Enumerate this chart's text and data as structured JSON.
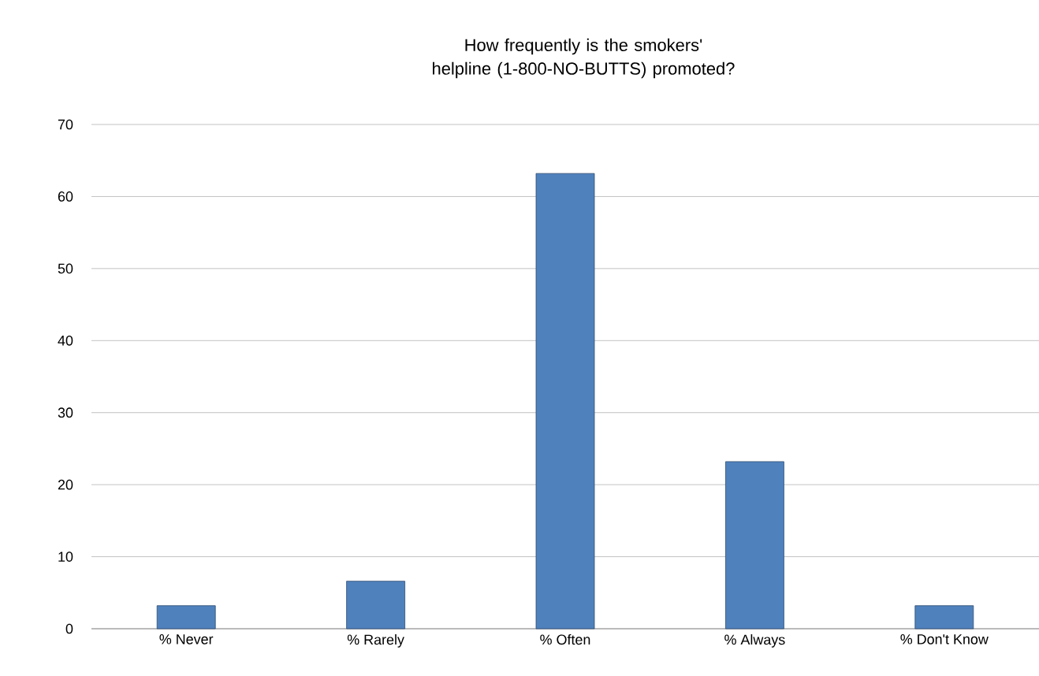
{
  "chart_data": {
    "type": "bar",
    "title": "How frequently is the smokers' helpline (1-800-NO-BUTTS) promoted?",
    "categories": [
      "% Never",
      "% Rarely",
      "% Often",
      "% Always",
      "% Don't Know"
    ],
    "values": [
      3.2,
      6.6,
      63.2,
      23.2,
      3.2
    ],
    "color": "#4f81bd",
    "ylim": [
      0,
      70
    ],
    "yticks": [
      0,
      10,
      20,
      30,
      40,
      50,
      60,
      70
    ],
    "grid": "y"
  }
}
